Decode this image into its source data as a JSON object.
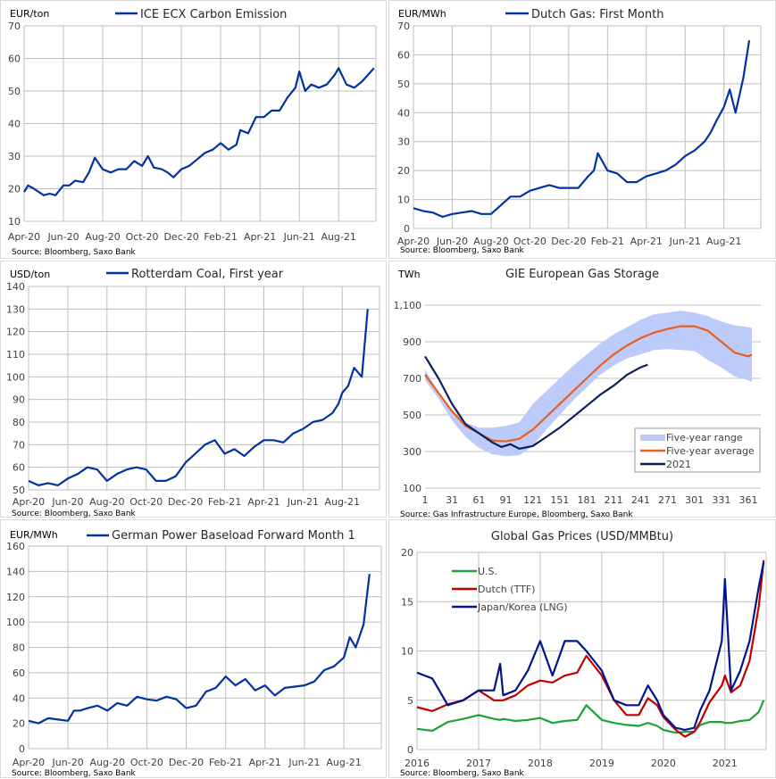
{
  "chart_data": [
    {
      "type": "line",
      "title": "ICE ECX Carbon Emission",
      "unit": "EUR/ton",
      "source": "Source: Bloomberg, Saxo Bank",
      "color": "#0033a0",
      "ylim": [
        10,
        70
      ],
      "yticks": [
        "70",
        "60",
        "50",
        "40",
        "30",
        "20",
        "10"
      ],
      "xticks": [
        "Apr-20",
        "Jun-20",
        "Aug-20",
        "Oct-20",
        "Dec-20",
        "Feb-21",
        "Apr-21",
        "Jun-21",
        "Aug-21"
      ],
      "x": [
        0,
        0.2,
        0.5,
        1,
        1.3,
        1.6,
        2,
        2.3,
        2.6,
        3,
        3.3,
        3.6,
        4,
        4.4,
        4.8,
        5.2,
        5.6,
        6,
        6.3,
        6.6,
        7,
        7.3,
        7.6,
        8,
        8.4,
        8.8,
        9.2,
        9.6,
        10,
        10.4,
        10.8,
        11,
        11.4,
        11.8,
        12.2,
        12.6,
        13,
        13.4,
        13.8,
        14,
        14.3,
        14.6,
        15,
        15.4,
        15.8,
        16,
        16.4,
        16.8,
        17.2,
        17.5,
        17.8
      ],
      "values": [
        19,
        21,
        20,
        18,
        18.5,
        18,
        21,
        21,
        22.5,
        22,
        25,
        29.5,
        26,
        25,
        26,
        26,
        28.5,
        27,
        30,
        26.5,
        26,
        25,
        23.5,
        26,
        27,
        29,
        31,
        32,
        34,
        32,
        33.5,
        38,
        37,
        42,
        42,
        44,
        44,
        48,
        51,
        56,
        50,
        52,
        51,
        52,
        55,
        57,
        52,
        51,
        53,
        55,
        57
      ]
    },
    {
      "type": "line",
      "title": "Dutch Gas: First Month",
      "unit": "EUR/MWh",
      "source": "Source: Bloomberg, Saxo Bank",
      "color": "#0033a0",
      "ylim": [
        0,
        70
      ],
      "yticks": [
        "70",
        "60",
        "50",
        "40",
        "30",
        "20",
        "10",
        "0"
      ],
      "xticks": [
        "Apr-20",
        "Jun-20",
        "Aug-20",
        "Oct-20",
        "Dec-20",
        "Feb-21",
        "Apr-21",
        "Jun-21",
        "Aug-21"
      ],
      "x": [
        0,
        0.5,
        1,
        1.5,
        2,
        2.5,
        3,
        3.5,
        4,
        4.5,
        5,
        5.5,
        6,
        6.5,
        7,
        7.5,
        8,
        8.5,
        9,
        9.3,
        9.5,
        10,
        10.5,
        11,
        11.5,
        12,
        12.5,
        13,
        13.5,
        14,
        14.5,
        15,
        15.3,
        15.6,
        16,
        16.3,
        16.6,
        17,
        17.3
      ],
      "values": [
        7,
        6,
        5.5,
        4,
        5,
        5.5,
        6,
        5,
        5,
        8,
        11,
        11,
        13,
        14,
        15,
        14,
        14,
        14,
        18,
        20,
        26,
        20,
        19,
        16,
        16,
        18,
        19,
        20,
        22,
        25,
        27,
        30,
        33,
        37,
        42,
        48,
        40,
        52,
        65
      ]
    },
    {
      "type": "line",
      "title": "Rotterdam Coal, First year",
      "unit": "USD/ton",
      "source": "Source: Bloomberg, Saxo Bank",
      "color": "#0033a0",
      "ylim": [
        50,
        140
      ],
      "yticks": [
        "140",
        "130",
        "120",
        "110",
        "100",
        "90",
        "80",
        "70",
        "60",
        "50"
      ],
      "xticks": [
        "Apr-20",
        "Jun-20",
        "Aug-20",
        "Oct-20",
        "Dec-20",
        "Feb-21",
        "Apr-21",
        "Jun-21",
        "Aug-21"
      ],
      "x": [
        0,
        0.5,
        1,
        1.5,
        2,
        2.5,
        3,
        3.5,
        4,
        4.5,
        5,
        5.5,
        6,
        6.5,
        7,
        7.5,
        8,
        8.5,
        9,
        9.5,
        10,
        10.5,
        11,
        11.5,
        12,
        12.5,
        13,
        13.5,
        14,
        14.5,
        15,
        15.5,
        15.8,
        16,
        16.3,
        16.6,
        17,
        17.3
      ],
      "values": [
        54,
        52,
        53,
        52,
        55,
        57,
        60,
        59,
        54,
        57,
        59,
        60,
        59,
        54,
        54,
        56,
        62,
        66,
        70,
        72,
        66,
        68,
        65,
        69,
        72,
        72,
        71,
        75,
        77,
        80,
        81,
        84,
        88,
        93,
        96,
        104,
        100,
        130
      ]
    },
    {
      "type": "area-line",
      "title": "GIE European Gas Storage",
      "unit": "TWh",
      "source": "Source: Gas Infrastructure Europe, Bloomberg, Saxo Bank",
      "ylim": [
        100,
        1100
      ],
      "yticks": [
        "1,100",
        "900",
        "700",
        "500",
        "300",
        "100"
      ],
      "xticks": [
        "1",
        "31",
        "61",
        "91",
        "121",
        "151",
        "181",
        "211",
        "241",
        "271",
        "301",
        "331",
        "361"
      ],
      "legend": [
        {
          "name": "Five-year range",
          "color": "#bdcbfa"
        },
        {
          "name": "Five-year average",
          "color": "#e8601c"
        },
        {
          "name": "2021",
          "color": "#0b1f5c"
        }
      ],
      "x": [
        1,
        16,
        31,
        46,
        61,
        76,
        91,
        106,
        121,
        136,
        151,
        166,
        181,
        196,
        211,
        226,
        241,
        256,
        271,
        286,
        301,
        316,
        331,
        346,
        361,
        365
      ],
      "range_low": [
        690,
        590,
        470,
        380,
        320,
        285,
        275,
        280,
        330,
        420,
        500,
        580,
        650,
        720,
        770,
        810,
        830,
        855,
        860,
        855,
        850,
        800,
        760,
        710,
        690,
        680
      ],
      "range_high": [
        750,
        620,
        530,
        460,
        430,
        430,
        440,
        460,
        560,
        630,
        700,
        770,
        830,
        890,
        940,
        980,
        1020,
        1050,
        1060,
        1070,
        1060,
        1040,
        1010,
        990,
        980,
        975
      ],
      "average": [
        720,
        620,
        520,
        440,
        400,
        360,
        355,
        370,
        420,
        490,
        560,
        630,
        700,
        770,
        830,
        880,
        920,
        950,
        970,
        985,
        985,
        960,
        900,
        840,
        820,
        830
      ],
      "series_2021_x": [
        1,
        16,
        31,
        46,
        61,
        76,
        86,
        96,
        106,
        121,
        136,
        151,
        166,
        181,
        196,
        211,
        226,
        241,
        249
      ],
      "series_2021": [
        820,
        700,
        560,
        450,
        400,
        350,
        325,
        340,
        315,
        330,
        380,
        430,
        490,
        550,
        610,
        660,
        720,
        760,
        775
      ]
    },
    {
      "type": "line",
      "title": "German Power Baseload Forward Month 1",
      "unit": "EUR/MWh",
      "source": "Source: Bloomberg, Saxo Bank",
      "color": "#0033a0",
      "ylim": [
        0,
        160
      ],
      "yticks": [
        "160",
        "140",
        "120",
        "100",
        "80",
        "60",
        "40",
        "20",
        "0"
      ],
      "xticks": [
        "Apr-20",
        "Jun-20",
        "Aug-20",
        "Oct-20",
        "Dec-20",
        "Feb-21",
        "Apr-21",
        "Jun-21",
        "Aug-21"
      ],
      "x": [
        0,
        0.5,
        1,
        1.5,
        2,
        2.3,
        2.6,
        3,
        3.5,
        4,
        4.5,
        5,
        5.5,
        6,
        6.5,
        7,
        7.5,
        8,
        8.5,
        9,
        9.5,
        10,
        10.5,
        11,
        11.5,
        12,
        12.5,
        13,
        13.5,
        14,
        14.5,
        15,
        15.5,
        16,
        16.3,
        16.6,
        17,
        17.3
      ],
      "values": [
        22,
        20,
        24,
        23,
        22,
        30,
        30,
        32,
        34,
        30,
        36,
        34,
        41,
        39,
        38,
        41,
        39,
        32,
        34,
        45,
        48,
        57,
        50,
        55,
        46,
        50,
        42,
        48,
        49,
        50,
        53,
        62,
        65,
        72,
        88,
        80,
        98,
        138
      ]
    },
    {
      "type": "line",
      "title": "Global Gas Prices (USD/MMBtu)",
      "source": "Source: Bloomberg, Saxo Bank",
      "ylim": [
        0,
        20
      ],
      "yticks": [
        "20",
        "15",
        "10",
        "5",
        "0"
      ],
      "xticks": [
        "2016",
        "2017",
        "2018",
        "2019",
        "2020",
        "2021"
      ],
      "x": [
        2016,
        2016.25,
        2016.5,
        2016.75,
        2017,
        2017.25,
        2017.35,
        2017.4,
        2017.6,
        2017.8,
        2018,
        2018.2,
        2018.4,
        2018.6,
        2018.75,
        2019,
        2019.2,
        2019.4,
        2019.6,
        2019.75,
        2019.9,
        2020,
        2020.2,
        2020.35,
        2020.5,
        2020.6,
        2020.75,
        2020.95,
        2021,
        2021.1,
        2021.25,
        2021.4,
        2021.55,
        2021.63
      ],
      "series": [
        {
          "name": "U.S.",
          "color": "#1aa33a",
          "values": [
            2.1,
            1.9,
            2.8,
            3.1,
            3.5,
            3.1,
            3.0,
            3.1,
            2.9,
            3.0,
            3.2,
            2.7,
            2.9,
            3.0,
            4.5,
            3.0,
            2.7,
            2.5,
            2.4,
            2.7,
            2.4,
            2.0,
            1.7,
            1.8,
            1.8,
            2.5,
            2.8,
            2.8,
            2.7,
            2.7,
            2.9,
            3.0,
            3.8,
            5.0
          ]
        },
        {
          "name": "Dutch (TTF)",
          "color": "#c00000",
          "values": [
            4.3,
            3.9,
            4.6,
            5.0,
            6.0,
            5.0,
            5.0,
            5.0,
            5.5,
            6.5,
            7.0,
            6.8,
            7.5,
            7.8,
            9.5,
            7.5,
            5.0,
            3.5,
            3.5,
            5.2,
            4.5,
            3.3,
            2.0,
            1.3,
            1.8,
            2.8,
            4.8,
            6.5,
            7.5,
            5.8,
            6.5,
            9.0,
            14.5,
            19.2
          ]
        },
        {
          "name": "Japan/Korea (LNG)",
          "color": "#00148c",
          "values": [
            7.8,
            7.2,
            4.5,
            5.0,
            6.0,
            6.0,
            8.7,
            5.5,
            6.0,
            8.0,
            11.0,
            7.5,
            11.0,
            11.0,
            10.0,
            8.0,
            5.0,
            4.5,
            4.5,
            6.5,
            5.0,
            3.5,
            2.2,
            2.0,
            2.2,
            4.0,
            6.0,
            11.0,
            17.3,
            6.0,
            8.0,
            11.0,
            16.5,
            19.0
          ]
        }
      ]
    }
  ]
}
